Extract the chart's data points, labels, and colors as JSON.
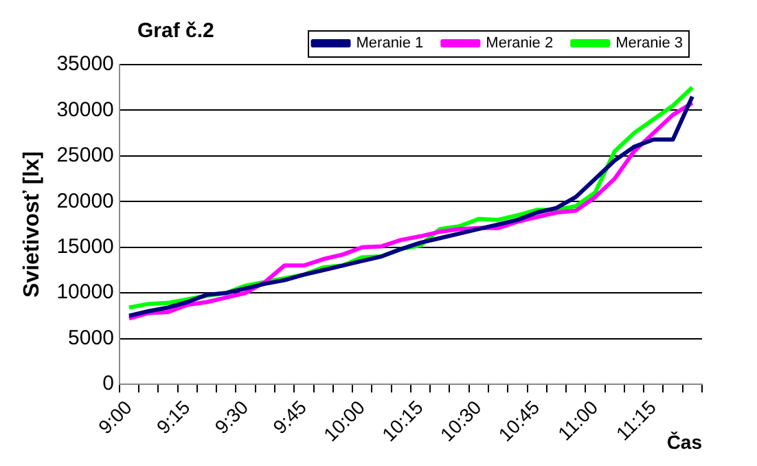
{
  "chart_data": {
    "type": "line",
    "title": "Graf č.2",
    "xlabel": "Čas",
    "ylabel": "Svietivosť [lx]",
    "categories": [
      "9:00",
      null,
      null,
      "9:15",
      null,
      null,
      "9:30",
      null,
      null,
      "9:45",
      null,
      null,
      "10:00",
      null,
      null,
      "10:15",
      null,
      null,
      "10:30",
      null,
      null,
      "10:45",
      null,
      null,
      "11:00",
      null,
      null,
      "11:15",
      null,
      null
    ],
    "series": [
      {
        "name": "Meranie 1",
        "color": "#000080",
        "values": [
          7500,
          8000,
          8400,
          9000,
          9800,
          10000,
          10500,
          11000,
          11400,
          12000,
          12500,
          13000,
          13500,
          14000,
          14800,
          15500,
          16000,
          16500,
          17000,
          17500,
          18000,
          18800,
          19300,
          20500,
          22500,
          24500,
          26000,
          26800,
          26800,
          31500
        ]
      },
      {
        "name": "Meranie 2",
        "color": "#ff00ff",
        "values": [
          7200,
          7800,
          7900,
          8700,
          9000,
          9500,
          10000,
          11200,
          13000,
          13000,
          13700,
          14200,
          15000,
          15100,
          15800,
          16200,
          16700,
          17000,
          17100,
          17100,
          17800,
          18300,
          18800,
          19000,
          20500,
          22500,
          25500,
          27500,
          29500,
          30800
        ]
      },
      {
        "name": "Meranie 3",
        "color": "#00ff00",
        "values": [
          8400,
          8800,
          8900,
          9300,
          9700,
          10000,
          10800,
          11200,
          11600,
          12000,
          12800,
          13000,
          13900,
          14000,
          14800,
          15200,
          17000,
          17300,
          18100,
          18000,
          18500,
          19100,
          19100,
          19500,
          21000,
          25500,
          27500,
          29000,
          30500,
          32500
        ]
      }
    ],
    "ylim": [
      0,
      35000
    ],
    "yticks": [
      0,
      5000,
      10000,
      15000,
      20000,
      25000,
      30000,
      35000
    ],
    "grid": "y",
    "legend": "top right",
    "marker": "none",
    "line_style": "solid"
  }
}
